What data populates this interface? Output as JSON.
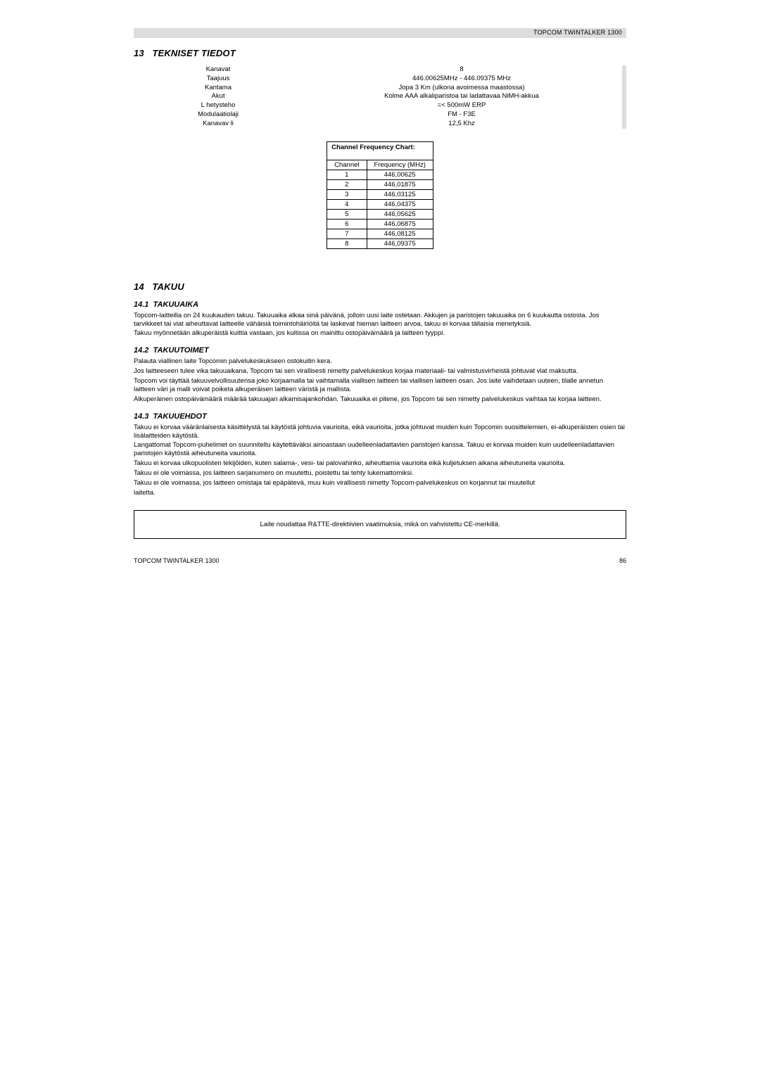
{
  "product": "TOPCOM TWINTALKER 1300",
  "page_number": "86",
  "sec13": {
    "num": "13",
    "title": "TEKNISET TIEDOT",
    "specs": [
      {
        "label": "Kanavat",
        "value": "8"
      },
      {
        "label": "Taajuus",
        "value": "446.00625MHz - 446.09375 MHz"
      },
      {
        "label": "Kantama",
        "value": "Jopa 3 Km (ulkona avoimessa maastossa)"
      },
      {
        "label": "Akut",
        "value": "Kolme AAA alkaliparistoa tai ladattavaa NiMH-akkua"
      },
      {
        "label": "L hetysteho",
        "value": "=< 500mW ERP"
      },
      {
        "label": "Modulaatiolaji",
        "value": "FM - F3E"
      },
      {
        "label": "Kanavav li",
        "value": "12,5 Khz"
      }
    ],
    "freq_title": "Channel Frequency Chart:",
    "freq_head_ch": "Channel",
    "freq_head_fr": "Frequency (MHz)",
    "freq_rows": [
      {
        "ch": "1",
        "fr": "446,00625"
      },
      {
        "ch": "2",
        "fr": "446,01875"
      },
      {
        "ch": "3",
        "fr": "446,03125"
      },
      {
        "ch": "4",
        "fr": "446,04375"
      },
      {
        "ch": "5",
        "fr": "446,05625"
      },
      {
        "ch": "6",
        "fr": "446,06875"
      },
      {
        "ch": "7",
        "fr": "446,08125"
      },
      {
        "ch": "8",
        "fr": "446,09375"
      }
    ]
  },
  "sec14": {
    "num": "14",
    "title": "TAKUU",
    "s1": {
      "num": "14.1",
      "title": "TAKUUAIKA",
      "p1": "Topcom-laitteilla on 24 kuukauden takuu. Takuuaika alkaa sinä päivänä, jolloin uusi laite ostetaan. Akkujen ja paristojen takuuaika on 6 kuukautta ostosta. Jos tarvikkeet tai viat aiheuttavat laitteelle vähäisiä toimintohäiriöitä tai laskevat hieman laitteen arvoa, takuu ei korvaa tällaisia menetyksiä.",
      "p2": "Takuu myönnetään alkuperäistä kuittia vastaan, jos kuitissa on mainittu ostopäivämäärä ja laitteen tyyppi."
    },
    "s2": {
      "num": "14.2",
      "title": "TAKUUTOIMET",
      "p1": "Palauta viallinen laite Topcomin palvelukeskukseen ostokuitin kera.",
      "p2": "Jos laitteeseen tulee vika takuuaikana, Topcom tai sen virallisesti nimetty palvelukeskus korjaa materiaali- tai valmistusvirheistä johtuvat viat maksutta.",
      "p3": "Topcom voi täyttää takuuvelvollisuutensa joko korjaamalla tai vaihtamalla viallisen laitteen tai viallisen laitteen osan. Jos laite vaihdetaan uuteen, tilalle annetun laitteen väri ja malli voivat poiketa alkuperäisen laitteen väristä ja mallista.",
      "p4": "Alkuperäinen ostopäivämäärä määrää takuuajan alkamisajankohdan. Takuuaika ei pitene, jos Topcom tai sen nimetty palvelukeskus vaihtaa tai korjaa laitteen."
    },
    "s3": {
      "num": "14.3",
      "title": "TAKUUEHDOT",
      "p1": "Takuu ei korvaa vääränlaisesta käsittelystä tai käytöstä johtuvia vaurioita, eikä vaurioita, jotka johtuvat muiden kuin Topcomin suosittelemien, ei-alkuperäisten osien tai lisälaitteiden käytöstä.",
      "p2": "Langattomat Topcom-puhelimet on suunniteltu käytettäväksi ainoastaan uudelleenladattavien paristojen kanssa. Takuu ei korvaa muiden kuin uudelleenladattavien paristojen käytöstä aiheutuneita vaurioita.",
      "p3": "Takuu ei korvaa ulkopuolisten tekijöiden, kuten salama-, vesi- tai palovahinko, aiheuttamia vaurioita eikä kuljetuksen aikana aiheutuneita vaurioita.",
      "p4": "Takuu ei ole voimassa, jos laitteen sarjanumero on muutettu, poistettu tai tehty lukemattomiksi.",
      "p5": "Takuu ei ole voimassa, jos laitteen omistaja tai epäpätevä, muu kuin virallisesti nimetty Topcom-palvelukeskus on korjannut tai muutellut",
      "p6": "laitetta."
    }
  },
  "notice": "Laite noudattaa R&TTE-direktiivien vaatimuksia, mikä on vahvistettu CE-merkillä."
}
